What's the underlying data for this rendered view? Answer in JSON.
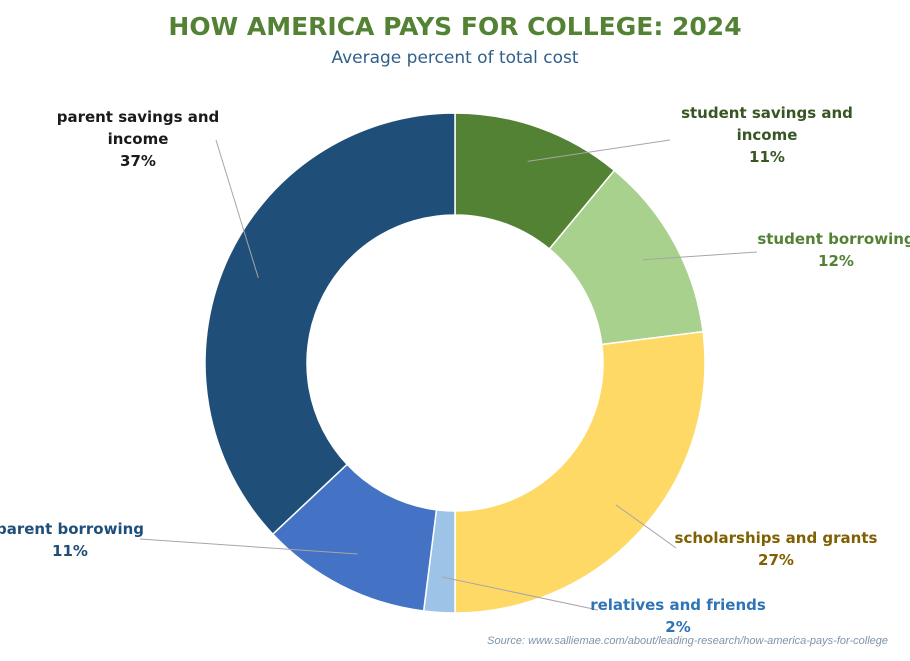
{
  "chart_data": {
    "type": "pie",
    "subtype": "donut",
    "title": "HOW AMERICA PAYS FOR COLLEGE: 2024",
    "subtitle": "Average percent of total cost",
    "source": "Source:  www.salliemae.com/about/leading-research/how-america-pays-for-college",
    "start_angle_deg": 0,
    "direction": "clockwise",
    "slices": [
      {
        "label": "student savings and income",
        "label_lines": [
          "student savings and",
          "income"
        ],
        "value": 11,
        "value_label": "11%",
        "color": "#548235",
        "label_color": "#375623"
      },
      {
        "label": "student borrowing",
        "label_lines": [
          "student borrowing"
        ],
        "value": 12,
        "value_label": "12%",
        "color": "#a9d18e",
        "label_color": "#548235"
      },
      {
        "label": "scholarships and grants",
        "label_lines": [
          "scholarships and grants"
        ],
        "value": 27,
        "value_label": "27%",
        "color": "#ffd966",
        "label_color": "#806000"
      },
      {
        "label": "relatives and friends",
        "label_lines": [
          "relatives and friends"
        ],
        "value": 2,
        "value_label": "2%",
        "color": "#9dc3e6",
        "label_color": "#2e75b6"
      },
      {
        "label": "parent borrowing",
        "label_lines": [
          "parent borrowing"
        ],
        "value": 11,
        "value_label": "11%",
        "color": "#4472c4",
        "label_color": "#1f4e79"
      },
      {
        "label": "parent savings and income",
        "label_lines": [
          "parent savings and",
          "income"
        ],
        "value": 37,
        "value_label": "37%",
        "color": "#1f4e79",
        "label_color": "#1a1a1a"
      }
    ]
  }
}
